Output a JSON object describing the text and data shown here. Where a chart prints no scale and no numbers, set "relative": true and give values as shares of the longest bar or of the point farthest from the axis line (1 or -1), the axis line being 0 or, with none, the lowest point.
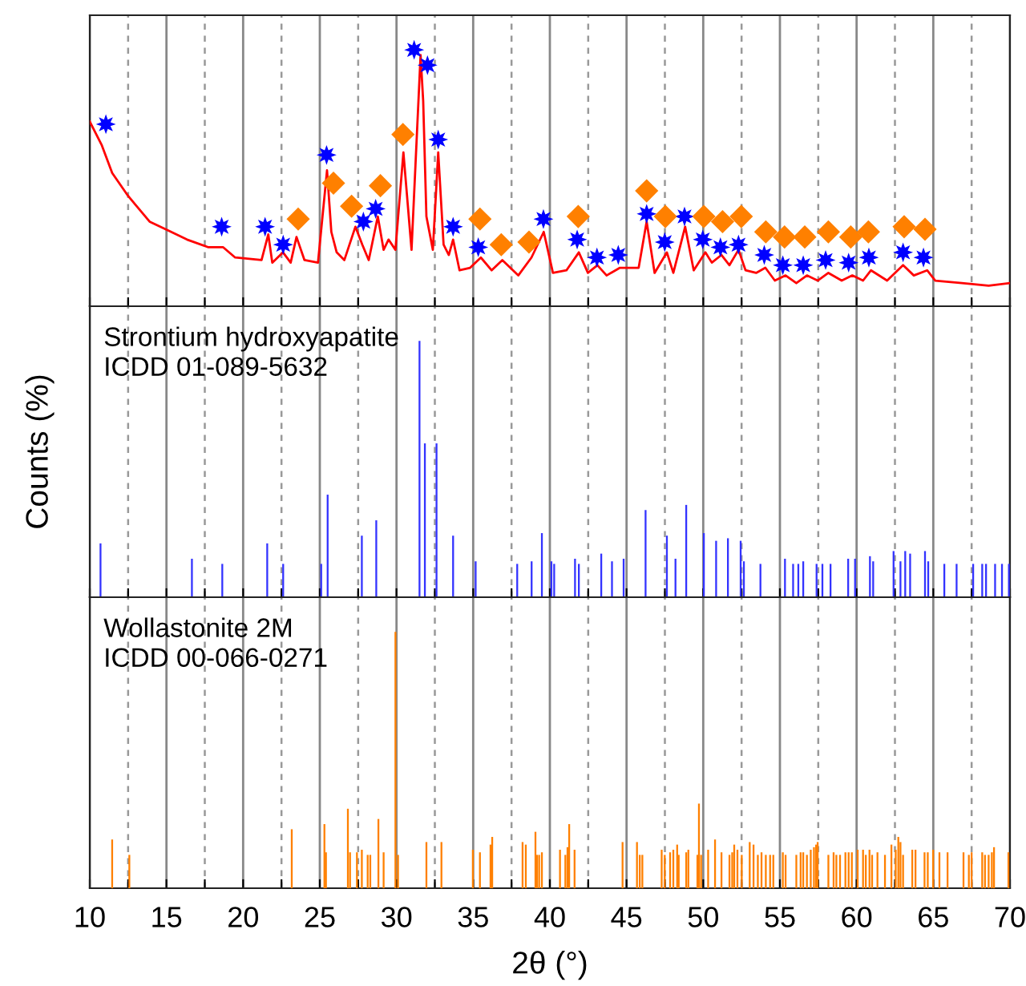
{
  "chart_data": [
    {
      "type": "line",
      "relative": true,
      "xlim": [
        10,
        70
      ],
      "xticks": [
        10,
        {
          "value": 12.5,
          "label": null
        },
        15,
        {
          "value": 17.5,
          "label": null
        },
        20,
        {
          "value": 22.5,
          "label": null
        },
        25,
        {
          "value": 27.5,
          "label": null
        },
        30,
        {
          "value": 32.5,
          "label": null
        },
        35,
        {
          "value": 37.5,
          "label": null
        },
        40,
        {
          "value": 42.5,
          "label": null
        },
        45,
        {
          "value": 47.5,
          "label": null
        },
        50,
        {
          "value": 52.5,
          "label": null
        },
        55,
        {
          "value": 57.5,
          "label": null
        },
        60,
        {
          "value": 62.5,
          "label": null
        },
        65,
        {
          "value": 67.5,
          "label": null
        },
        70
      ],
      "grid": "x",
      "tick_labels": false,
      "series": [
        {
          "type": "line",
          "color": "#ff0000",
          "x": [
            10.0,
            10.77,
            11.46,
            12.5,
            13.9,
            14.95,
            16.34,
            17.74,
            18.7,
            19.48,
            21.2,
            21.64,
            21.9,
            22.6,
            23.1,
            23.48,
            24.0,
            24.88,
            25.47,
            25.75,
            26.1,
            26.6,
            27.32,
            27.77,
            28.19,
            28.78,
            29.16,
            29.48,
            29.93,
            30.45,
            30.98,
            31.57,
            31.74,
            31.95,
            32.37,
            32.72,
            33.07,
            33.41,
            33.69,
            34.11,
            34.8,
            35.5,
            36.2,
            36.9,
            37.94,
            38.8,
            39.6,
            40.2,
            41.08,
            41.89,
            42.48,
            43.1,
            43.7,
            44.57,
            45.79,
            46.31,
            46.83,
            47.63,
            48.05,
            48.82,
            49.38,
            50.14,
            50.56,
            51.19,
            51.71,
            52.3,
            52.76,
            53.45,
            54.05,
            54.67,
            55.37,
            56.07,
            56.76,
            57.46,
            58.16,
            59.03,
            59.72,
            60.42,
            60.94,
            61.99,
            63.03,
            63.73,
            64.6,
            65.13,
            66.87,
            68.61,
            70.0
          ],
          "values": [
            0.72,
            0.63,
            0.52,
            0.43,
            0.33,
            0.3,
            0.26,
            0.23,
            0.23,
            0.19,
            0.18,
            0.28,
            0.17,
            0.21,
            0.17,
            0.27,
            0.18,
            0.17,
            0.53,
            0.29,
            0.21,
            0.18,
            0.31,
            0.24,
            0.18,
            0.35,
            0.22,
            0.26,
            0.22,
            0.6,
            0.22,
            0.98,
            0.8,
            0.35,
            0.22,
            0.6,
            0.24,
            0.2,
            0.26,
            0.14,
            0.15,
            0.19,
            0.14,
            0.18,
            0.12,
            0.19,
            0.29,
            0.13,
            0.14,
            0.21,
            0.13,
            0.16,
            0.12,
            0.15,
            0.15,
            0.33,
            0.13,
            0.21,
            0.13,
            0.31,
            0.14,
            0.21,
            0.17,
            0.2,
            0.16,
            0.22,
            0.14,
            0.13,
            0.15,
            0.1,
            0.12,
            0.09,
            0.12,
            0.1,
            0.13,
            0.1,
            0.12,
            0.1,
            0.14,
            0.1,
            0.16,
            0.12,
            0.14,
            0.1,
            0.09,
            0.08,
            0.09
          ]
        },
        {
          "type": "scatter",
          "marker": "star",
          "color": "#0000ff",
          "x": [
            11.05,
            18.6,
            21.43,
            22.61,
            25.44,
            27.84,
            28.64,
            31.15,
            32.02,
            32.72,
            33.69,
            35.33,
            39.58,
            41.78,
            43.07,
            44.46,
            46.31,
            47.49,
            48.78,
            49.97,
            51.12,
            52.3,
            53.98,
            55.19,
            56.52,
            57.98,
            59.48,
            60.8,
            63.03,
            64.36
          ],
          "values": [
            0.71,
            0.31,
            0.31,
            0.24,
            0.59,
            0.33,
            0.38,
            1.0,
            0.94,
            0.65,
            0.31,
            0.23,
            0.34,
            0.26,
            0.19,
            0.2,
            0.36,
            0.25,
            0.35,
            0.26,
            0.23,
            0.24,
            0.2,
            0.16,
            0.16,
            0.18,
            0.17,
            0.19,
            0.21,
            0.19
          ]
        },
        {
          "type": "scatter",
          "marker": "diamond",
          "color": "#ff8000",
          "x": [
            23.59,
            25.89,
            27.07,
            28.95,
            30.42,
            35.44,
            36.83,
            38.64,
            41.85,
            46.31,
            47.53,
            50.04,
            51.26,
            52.48,
            54.08,
            55.3,
            56.62,
            58.16,
            59.62,
            60.77,
            63.1,
            64.46
          ],
          "values": [
            0.34,
            0.48,
            0.39,
            0.47,
            0.67,
            0.34,
            0.24,
            0.25,
            0.35,
            0.45,
            0.35,
            0.35,
            0.33,
            0.35,
            0.29,
            0.27,
            0.27,
            0.29,
            0.27,
            0.29,
            0.31,
            0.3
          ]
        }
      ]
    },
    {
      "type": "bar",
      "relative": true,
      "ylabel": "Counts (%)",
      "annotations": [
        "Strontium hydroxyapatite\nICDD 01-089-5632"
      ],
      "xlim": [
        10,
        70
      ],
      "xticks": [
        10,
        {
          "value": 12.5,
          "label": null
        },
        15,
        {
          "value": 17.5,
          "label": null
        },
        20,
        {
          "value": 22.5,
          "label": null
        },
        25,
        {
          "value": 27.5,
          "label": null
        },
        30,
        {
          "value": 32.5,
          "label": null
        },
        35,
        {
          "value": 37.5,
          "label": null
        },
        40,
        {
          "value": 42.5,
          "label": null
        },
        45,
        {
          "value": 47.5,
          "label": null
        },
        50,
        {
          "value": 52.5,
          "label": null
        },
        55,
        {
          "value": 57.5,
          "label": null
        },
        60,
        {
          "value": 62.5,
          "label": null
        },
        65,
        {
          "value": 67.5,
          "label": null
        },
        70
      ],
      "grid": "x",
      "tick_labels": false,
      "series": [
        {
          "color": "#3333ff",
          "x": [
            10.7,
            16.66,
            18.64,
            21.57,
            22.61,
            25.09,
            25.51,
            27.74,
            28.68,
            31.5,
            31.85,
            32.61,
            33.69,
            35.16,
            37.87,
            38.81,
            39.48,
            40.1,
            40.28,
            41.64,
            41.89,
            43.35,
            44.05,
            44.81,
            46.24,
            47.63,
            48.19,
            48.89,
            50.04,
            50.84,
            51.61,
            52.44,
            52.65,
            53.73,
            55.33,
            55.86,
            56.2,
            56.52,
            57.39,
            57.77,
            58.3,
            59.45,
            59.9,
            60.87,
            61.08,
            62.41,
            62.86,
            63.17,
            63.49,
            64.46,
            64.67,
            65.72,
            66.52,
            67.6,
            68.19,
            68.44,
            69.03,
            69.48,
            69.93
          ],
          "values": [
            0.21,
            0.15,
            0.13,
            0.21,
            0.13,
            0.13,
            0.4,
            0.24,
            0.3,
            1.0,
            0.6,
            0.6,
            0.24,
            0.14,
            0.13,
            0.14,
            0.25,
            0.14,
            0.13,
            0.15,
            0.13,
            0.17,
            0.14,
            0.15,
            0.34,
            0.24,
            0.15,
            0.36,
            0.25,
            0.22,
            0.23,
            0.22,
            0.14,
            0.13,
            0.15,
            0.13,
            0.13,
            0.14,
            0.13,
            0.13,
            0.13,
            0.15,
            0.15,
            0.16,
            0.14,
            0.18,
            0.14,
            0.18,
            0.17,
            0.18,
            0.14,
            0.13,
            0.13,
            0.13,
            0.13,
            0.13,
            0.13,
            0.13,
            0.13
          ]
        }
      ]
    },
    {
      "type": "bar",
      "relative": true,
      "xlabel": "2θ (°)",
      "annotations": [
        "Wollastonite 2M\nICDD 00-066-0271"
      ],
      "xlim": [
        10,
        70
      ],
      "xticks": [
        10,
        {
          "value": 12.5,
          "label": null
        },
        15,
        {
          "value": 17.5,
          "label": null
        },
        20,
        {
          "value": 22.5,
          "label": null
        },
        25,
        {
          "value": 27.5,
          "label": null
        },
        30,
        {
          "value": 32.5,
          "label": null
        },
        35,
        {
          "value": 37.5,
          "label": null
        },
        40,
        {
          "value": 42.5,
          "label": null
        },
        45,
        {
          "value": 47.5,
          "label": null
        },
        50,
        {
          "value": 52.5,
          "label": null
        },
        55,
        {
          "value": 57.5,
          "label": null
        },
        60,
        {
          "value": 62.5,
          "label": null
        },
        65,
        {
          "value": 67.5,
          "label": null
        },
        70
      ],
      "grid": "x",
      "tick_labels": "x",
      "series": [
        {
          "color": "#ff8000",
          "x": [
            11.46,
            12.58,
            23.17,
            25.3,
            25.4,
            26.83,
            26.97,
            27.42,
            27.74,
            28.12,
            28.29,
            28.82,
            29.16,
            29.93,
            30.1,
            31.95,
            32.93,
            34.98,
            35.44,
            36.13,
            36.24,
            38.22,
            38.43,
            39.06,
            39.16,
            39.3,
            39.48,
            40.66,
            41.01,
            41.15,
            41.26,
            41.61,
            44.74,
            45.68,
            45.86,
            46.03,
            47.29,
            47.49,
            47.84,
            48.05,
            48.3,
            48.4,
            48.89,
            49.03,
            49.62,
            49.72,
            49.86,
            50.32,
            50.77,
            51.19,
            51.71,
            51.89,
            52.02,
            52.23,
            52.51,
            53.03,
            53.28,
            53.56,
            53.8,
            54.08,
            54.36,
            54.57,
            55.19,
            55.37,
            56.07,
            56.35,
            56.52,
            56.76,
            57.01,
            57.22,
            57.36,
            57.46,
            58.16,
            58.5,
            58.68,
            58.92,
            59.27,
            59.48,
            59.69,
            60.07,
            60.42,
            60.6,
            60.84,
            61.01,
            61.36,
            61.85,
            62.27,
            62.55,
            62.72,
            62.86,
            63.03,
            63.63,
            63.84,
            64.43,
            64.64,
            64.99,
            65.4,
            65.93,
            66.97,
            67.32,
            67.5,
            68.19,
            68.37,
            68.61,
            68.82,
            68.96,
            69.9
          ],
          "values": [
            0.19,
            0.13,
            0.23,
            0.25,
            0.14,
            0.31,
            0.14,
            0.14,
            0.15,
            0.13,
            0.13,
            0.27,
            0.14,
            1.0,
            0.13,
            0.18,
            0.18,
            0.15,
            0.14,
            0.17,
            0.2,
            0.18,
            0.17,
            0.22,
            0.13,
            0.13,
            0.14,
            0.15,
            0.13,
            0.16,
            0.25,
            0.15,
            0.18,
            0.18,
            0.13,
            0.13,
            0.15,
            0.13,
            0.14,
            0.15,
            0.17,
            0.13,
            0.14,
            0.15,
            0.13,
            0.33,
            0.13,
            0.15,
            0.19,
            0.14,
            0.13,
            0.14,
            0.17,
            0.15,
            0.13,
            0.18,
            0.17,
            0.13,
            0.14,
            0.13,
            0.13,
            0.13,
            0.14,
            0.13,
            0.13,
            0.14,
            0.14,
            0.13,
            0.15,
            0.16,
            0.17,
            0.18,
            0.13,
            0.14,
            0.13,
            0.13,
            0.14,
            0.14,
            0.14,
            0.15,
            0.15,
            0.13,
            0.15,
            0.13,
            0.14,
            0.13,
            0.17,
            0.15,
            0.2,
            0.18,
            0.13,
            0.15,
            0.15,
            0.14,
            0.14,
            0.15,
            0.14,
            0.14,
            0.14,
            0.13,
            0.14,
            0.14,
            0.13,
            0.13,
            0.14,
            0.16,
            0.14
          ]
        }
      ]
    }
  ]
}
